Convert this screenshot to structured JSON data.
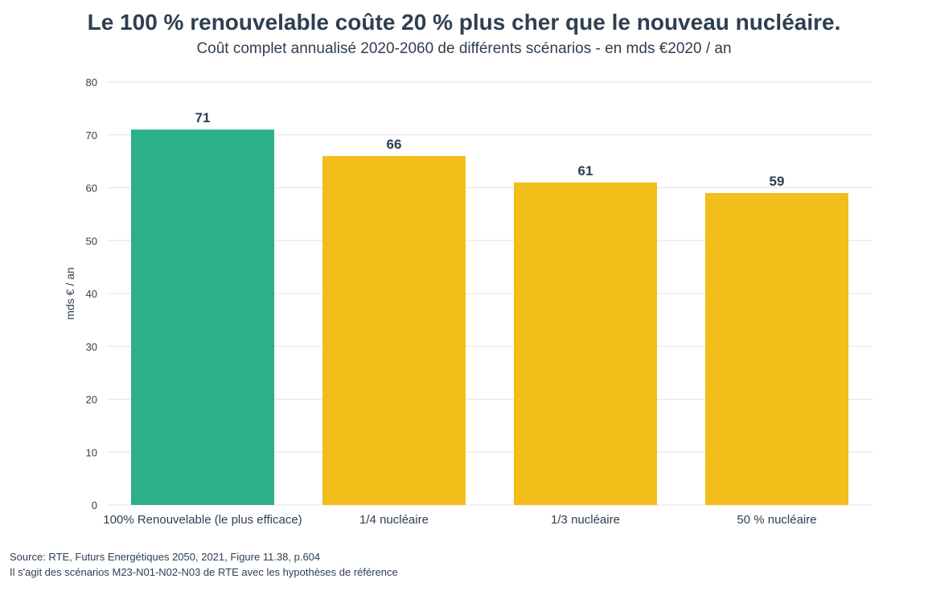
{
  "chart_data": {
    "type": "bar",
    "title": "Le 100 % renouvelable coûte 20 % plus cher que le nouveau nucléaire.",
    "subtitle": "Coût complet annualisé 2020-2060 de différents scénarios - en mds €2020 / an",
    "xlabel": "",
    "ylabel": "mds € / an",
    "categories": [
      "100% Renouvelable (le plus efficace)",
      "1/4 nucléaire",
      "1/3 nucléaire",
      "50 % nucléaire"
    ],
    "values": [
      71,
      66,
      61,
      59
    ],
    "value_labels": [
      "71",
      "66",
      "61",
      "59"
    ],
    "colors": [
      "#2bb089",
      "#f3bd1a",
      "#f3bd1a",
      "#f3bd1a"
    ],
    "ylim": [
      0,
      80
    ],
    "yticks": [
      0,
      10,
      20,
      30,
      40,
      50,
      60,
      70,
      80
    ],
    "grid": true,
    "source_lines": [
      "Source: RTE, Futurs Energétiques 2050, 2021, Figure 11.38, p.604",
      "Il s'agit des scénarios M23-N01-N02-N03 de RTE avec les hypothèses de référence"
    ]
  }
}
